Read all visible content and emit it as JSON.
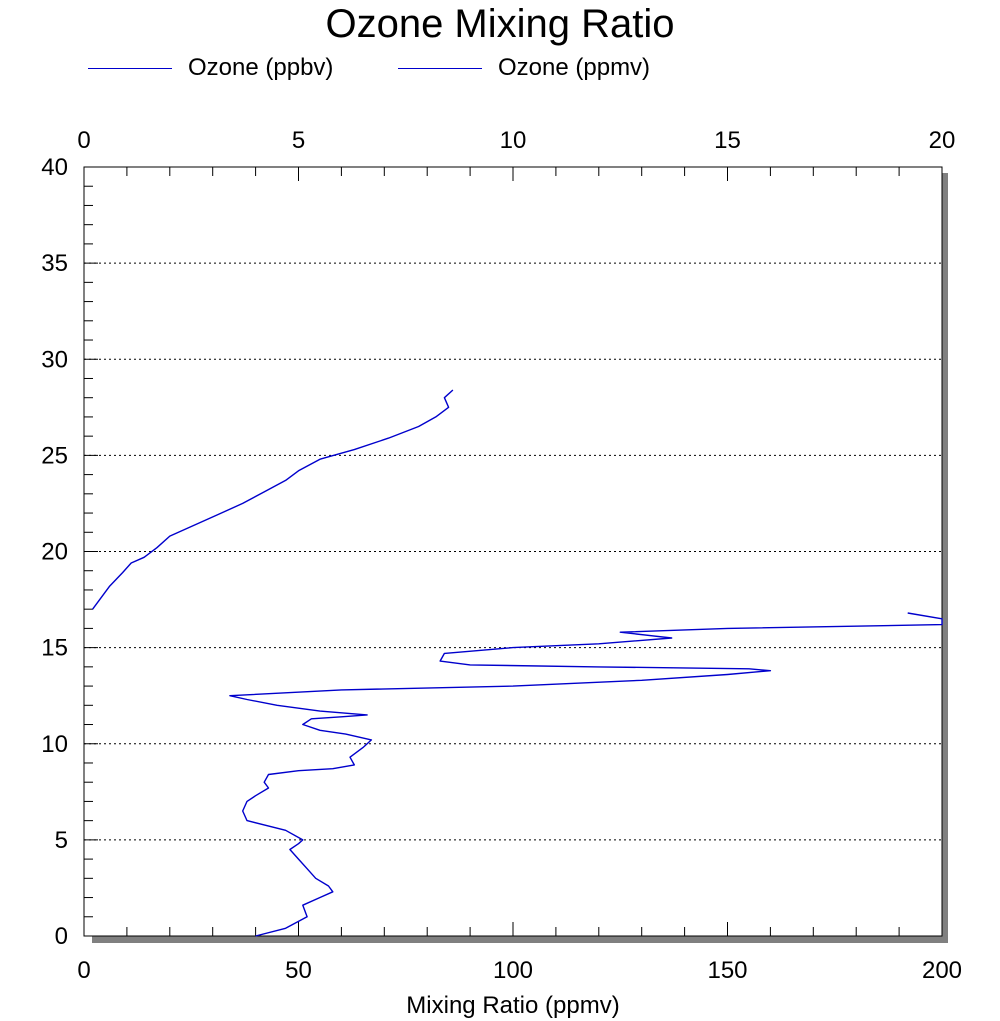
{
  "chart_data": {
    "type": "line",
    "title": "Ozone Mixing Ratio",
    "xlabel": "Mixing Ratio (ppmv)",
    "ylabel": "",
    "x_bottom": {
      "range": [
        0,
        200
      ],
      "ticks": [
        0,
        50,
        100,
        150,
        200
      ]
    },
    "x_top": {
      "range": [
        0,
        20
      ],
      "ticks": [
        0,
        5,
        10,
        15,
        20
      ]
    },
    "y": {
      "range": [
        0,
        40
      ],
      "ticks": [
        0,
        5,
        10,
        15,
        20,
        25,
        30,
        35,
        40
      ]
    },
    "grid": "horizontal dotted",
    "legend": {
      "placement": "top",
      "entries": [
        "Ozone (ppbv)",
        "Ozone (ppmv)"
      ]
    },
    "series": [
      {
        "name": "Ozone (ppbv)",
        "axis": "bottom",
        "color": "#0000cc",
        "points": [
          [
            40,
            0.0
          ],
          [
            47,
            0.4
          ],
          [
            52,
            1.0
          ],
          [
            51,
            1.6
          ],
          [
            55,
            2.0
          ],
          [
            58,
            2.3
          ],
          [
            57,
            2.6
          ],
          [
            54,
            3.0
          ],
          [
            52,
            3.5
          ],
          [
            50,
            4.0
          ],
          [
            48,
            4.5
          ],
          [
            50,
            4.8
          ],
          [
            51,
            5.0
          ],
          [
            47,
            5.5
          ],
          [
            38,
            6.0
          ],
          [
            37,
            6.5
          ],
          [
            38,
            7.0
          ],
          [
            40,
            7.3
          ],
          [
            43,
            7.7
          ],
          [
            42,
            8.0
          ],
          [
            43,
            8.4
          ],
          [
            50,
            8.6
          ],
          [
            58,
            8.7
          ],
          [
            63,
            8.9
          ],
          [
            62,
            9.3
          ],
          [
            65,
            9.8
          ],
          [
            67,
            10.2
          ],
          [
            61,
            10.5
          ],
          [
            55,
            10.7
          ],
          [
            51,
            11.0
          ],
          [
            53,
            11.3
          ],
          [
            60,
            11.4
          ],
          [
            66,
            11.5
          ],
          [
            55,
            11.7
          ],
          [
            45,
            12.0
          ],
          [
            38,
            12.3
          ],
          [
            34,
            12.5
          ],
          [
            60,
            12.8
          ],
          [
            100,
            13.0
          ],
          [
            130,
            13.3
          ],
          [
            150,
            13.6
          ],
          [
            160,
            13.8
          ],
          [
            155,
            13.9
          ],
          [
            120,
            14.0
          ],
          [
            90,
            14.1
          ],
          [
            83,
            14.3
          ],
          [
            84,
            14.7
          ],
          [
            100,
            15.0
          ],
          [
            120,
            15.2
          ],
          [
            137,
            15.5
          ],
          [
            125,
            15.8
          ],
          [
            150,
            16.0
          ],
          [
            200,
            16.2
          ],
          [
            200,
            16.5
          ],
          [
            192,
            16.8
          ]
        ]
      },
      {
        "name": "Ozone (ppmv)",
        "axis": "top",
        "color": "#0000cc",
        "points": [
          [
            0.2,
            17.0
          ],
          [
            0.4,
            17.6
          ],
          [
            0.6,
            18.2
          ],
          [
            0.9,
            18.9
          ],
          [
            1.1,
            19.4
          ],
          [
            1.4,
            19.7
          ],
          [
            1.7,
            20.2
          ],
          [
            2.0,
            20.8
          ],
          [
            2.5,
            21.3
          ],
          [
            3.1,
            21.9
          ],
          [
            3.7,
            22.5
          ],
          [
            4.2,
            23.1
          ],
          [
            4.7,
            23.7
          ],
          [
            5.0,
            24.2
          ],
          [
            5.5,
            24.8
          ],
          [
            6.3,
            25.3
          ],
          [
            7.1,
            25.9
          ],
          [
            7.8,
            26.5
          ],
          [
            8.2,
            27.0
          ],
          [
            8.5,
            27.5
          ],
          [
            8.4,
            28.0
          ],
          [
            8.6,
            28.4
          ]
        ]
      }
    ]
  },
  "legend_labels": {
    "ppbv": "Ozone (ppbv)",
    "ppmv": "Ozone (ppmv)"
  }
}
